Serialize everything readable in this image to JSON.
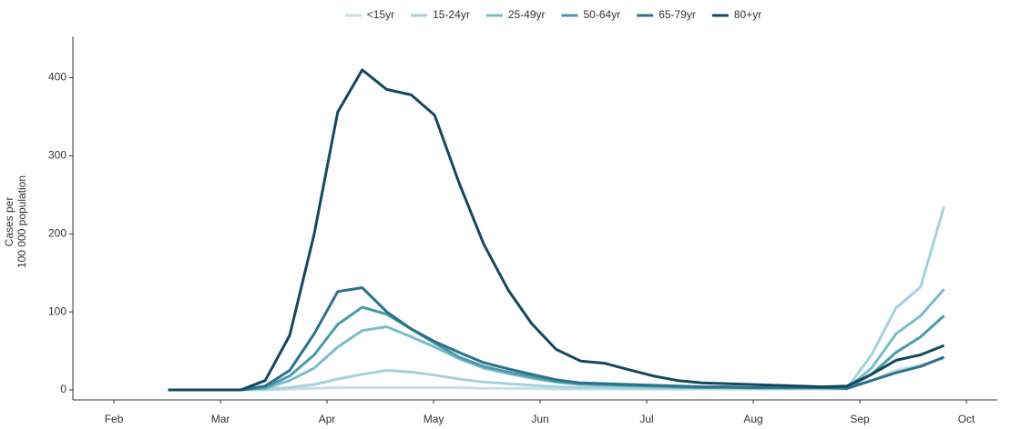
{
  "chart_data": {
    "type": "line",
    "ylabel": [
      "Cases per",
      "100 000 population"
    ],
    "x": [
      2.51,
      2.74,
      2.97,
      3.19,
      3.42,
      3.65,
      3.88,
      4.1,
      4.33,
      4.56,
      4.79,
      5.01,
      5.24,
      5.47,
      5.7,
      5.92,
      6.15,
      6.38,
      6.61,
      6.83,
      7.06,
      7.29,
      7.52,
      7.74,
      7.97,
      8.2,
      8.43,
      8.65,
      8.88,
      9.11,
      9.34,
      9.57,
      9.79
    ],
    "series": [
      {
        "name": "<15yr",
        "color": "#c6dfe6",
        "values": [
          0,
          0,
          0,
          0,
          0,
          1,
          2,
          3,
          3,
          3,
          3,
          3,
          3,
          2,
          2,
          2,
          1,
          1,
          1,
          1,
          1,
          1,
          1,
          1,
          1,
          1,
          1,
          1,
          1,
          12,
          25,
          32,
          40
        ]
      },
      {
        "name": "15-24yr",
        "color": "#a3d2dc",
        "values": [
          0,
          0,
          0,
          0,
          1,
          3,
          7,
          14,
          20,
          25,
          23,
          19,
          14,
          10,
          8,
          6,
          4,
          3,
          3,
          2,
          2,
          2,
          2,
          2,
          2,
          2,
          2,
          2,
          2,
          45,
          105,
          132,
          235
        ]
      },
      {
        "name": "25-49yr",
        "color": "#7bbcc8",
        "values": [
          0,
          0,
          0,
          0,
          2,
          12,
          28,
          55,
          76,
          81,
          68,
          55,
          40,
          28,
          21,
          15,
          10,
          7,
          6,
          5,
          4,
          3,
          3,
          3,
          2,
          2,
          2,
          2,
          2,
          28,
          72,
          95,
          129
        ]
      },
      {
        "name": "50-64yr",
        "color": "#4a9aab",
        "values": [
          0,
          0,
          0,
          0,
          3,
          18,
          45,
          84,
          106,
          97,
          78,
          60,
          42,
          30,
          23,
          17,
          11,
          8,
          7,
          6,
          5,
          4,
          3,
          3,
          3,
          3,
          3,
          3,
          2,
          20,
          48,
          68,
          95
        ]
      },
      {
        "name": "65-79yr",
        "color": "#2a728a",
        "values": [
          0,
          0,
          0,
          0,
          5,
          25,
          72,
          126,
          131,
          100,
          78,
          62,
          48,
          35,
          27,
          20,
          13,
          9,
          8,
          7,
          6,
          5,
          4,
          4,
          3,
          3,
          3,
          3,
          2,
          12,
          22,
          30,
          42
        ]
      },
      {
        "name": "80+yr",
        "color": "#14485e",
        "values": [
          0,
          0,
          0,
          0,
          12,
          70,
          200,
          356,
          410,
          385,
          378,
          352,
          265,
          187,
          128,
          85,
          52,
          37,
          34,
          26,
          18,
          12,
          9,
          8,
          7,
          6,
          5,
          4,
          5,
          20,
          38,
          45,
          57
        ]
      }
    ],
    "xlim": [
      1.615,
      10.29
    ],
    "xticks": [
      {
        "value": 2,
        "label": "Feb"
      },
      {
        "value": 3,
        "label": "Mar"
      },
      {
        "value": 4,
        "label": "Apr"
      },
      {
        "value": 5,
        "label": "May"
      },
      {
        "value": 6,
        "label": "Jun"
      },
      {
        "value": 7,
        "label": "Jul"
      },
      {
        "value": 8,
        "label": "Aug"
      },
      {
        "value": 9,
        "label": "Sep"
      },
      {
        "value": 10,
        "label": "Oct"
      }
    ],
    "ylim": [
      -12.8,
      453
    ],
    "yticks": [
      0,
      100,
      200,
      300,
      400
    ],
    "grid": false,
    "legend": "top"
  }
}
